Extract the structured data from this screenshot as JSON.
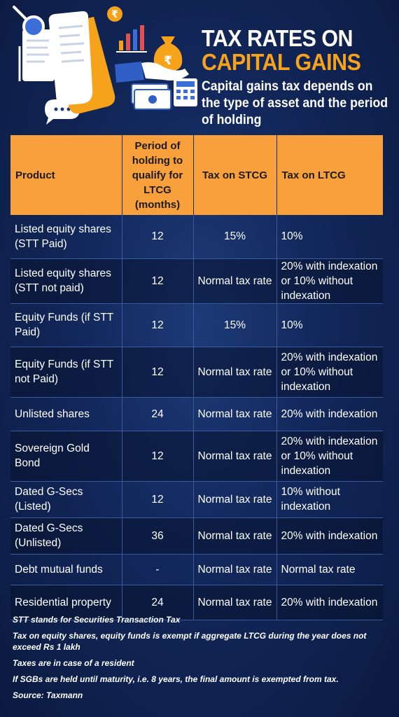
{
  "header": {
    "title_line1": "TAX RATES ON",
    "title_line2": "CAPITAL GAINS",
    "subtitle": "Capital gains tax depends on the type of asset and the period of holding"
  },
  "table": {
    "columns": [
      "Product",
      "Period of holding to qualify for LTCG (months)",
      "Tax on STCG",
      "Tax on LTCG"
    ],
    "rows": [
      {
        "product": "Listed equity shares (STT Paid)",
        "period": "12",
        "stcg": "15%",
        "ltcg": "10%"
      },
      {
        "product": "Listed equity shares (STT not paid)",
        "period": "12",
        "stcg": "Normal tax rate",
        "ltcg": "20% with indexation or 10% without indexation"
      },
      {
        "product": "Equity Funds (if STT Paid)",
        "period": "12",
        "stcg": "15%",
        "ltcg": "10%"
      },
      {
        "product": "Equity Funds (if STT not Paid)",
        "period": "12",
        "stcg": "Normal tax rate",
        "ltcg": "20% with indexation or 10% without indexation"
      },
      {
        "product": "Unlisted shares",
        "period": "24",
        "stcg": "Normal tax rate",
        "ltcg": "20% with indexation"
      },
      {
        "product": "Sovereign Gold Bond",
        "period": "12",
        "stcg": "Normal tax rate",
        "ltcg": "20% with indexation or 10% without indexation"
      },
      {
        "product": "Dated G-Secs (Listed)",
        "period": "12",
        "stcg": "Normal tax rate",
        "ltcg": "10% without indexation"
      },
      {
        "product": "Dated G-Secs (Unlisted)",
        "period": "36",
        "stcg": "Normal tax rate",
        "ltcg": "20% with indexation"
      },
      {
        "product": "Debt mutual funds",
        "period": "-",
        "stcg": "Normal tax rate",
        "ltcg": "Normal tax rate"
      },
      {
        "product": "Residential property",
        "period": "24",
        "stcg": "Normal tax rate",
        "ltcg": "20% with indexation"
      }
    ]
  },
  "notes": [
    "STT stands for Securities Transaction Tax",
    "Tax on equity shares, equity funds is exempt if aggregate LTCG during the year does not exceed Rs 1 lakh",
    "Taxes are in case of a resident",
    "If SGBs are held until maturity, i.e. 8 years, the final amount is exempted from tax.",
    "Source: Taxmann"
  ],
  "illustration": {
    "rupee_symbol": "₹",
    "icons": [
      "magnifier-icon",
      "document-icon",
      "bar-chart-icon",
      "money-bag-icon",
      "hand-icon",
      "banknote-icon",
      "calculator-icon",
      "chat-bubble-icon"
    ],
    "accent": "#f7a21b"
  },
  "colors": {
    "background": "#12275a",
    "accent_orange": "#f7a21b",
    "header_row": "#f7a03c"
  }
}
